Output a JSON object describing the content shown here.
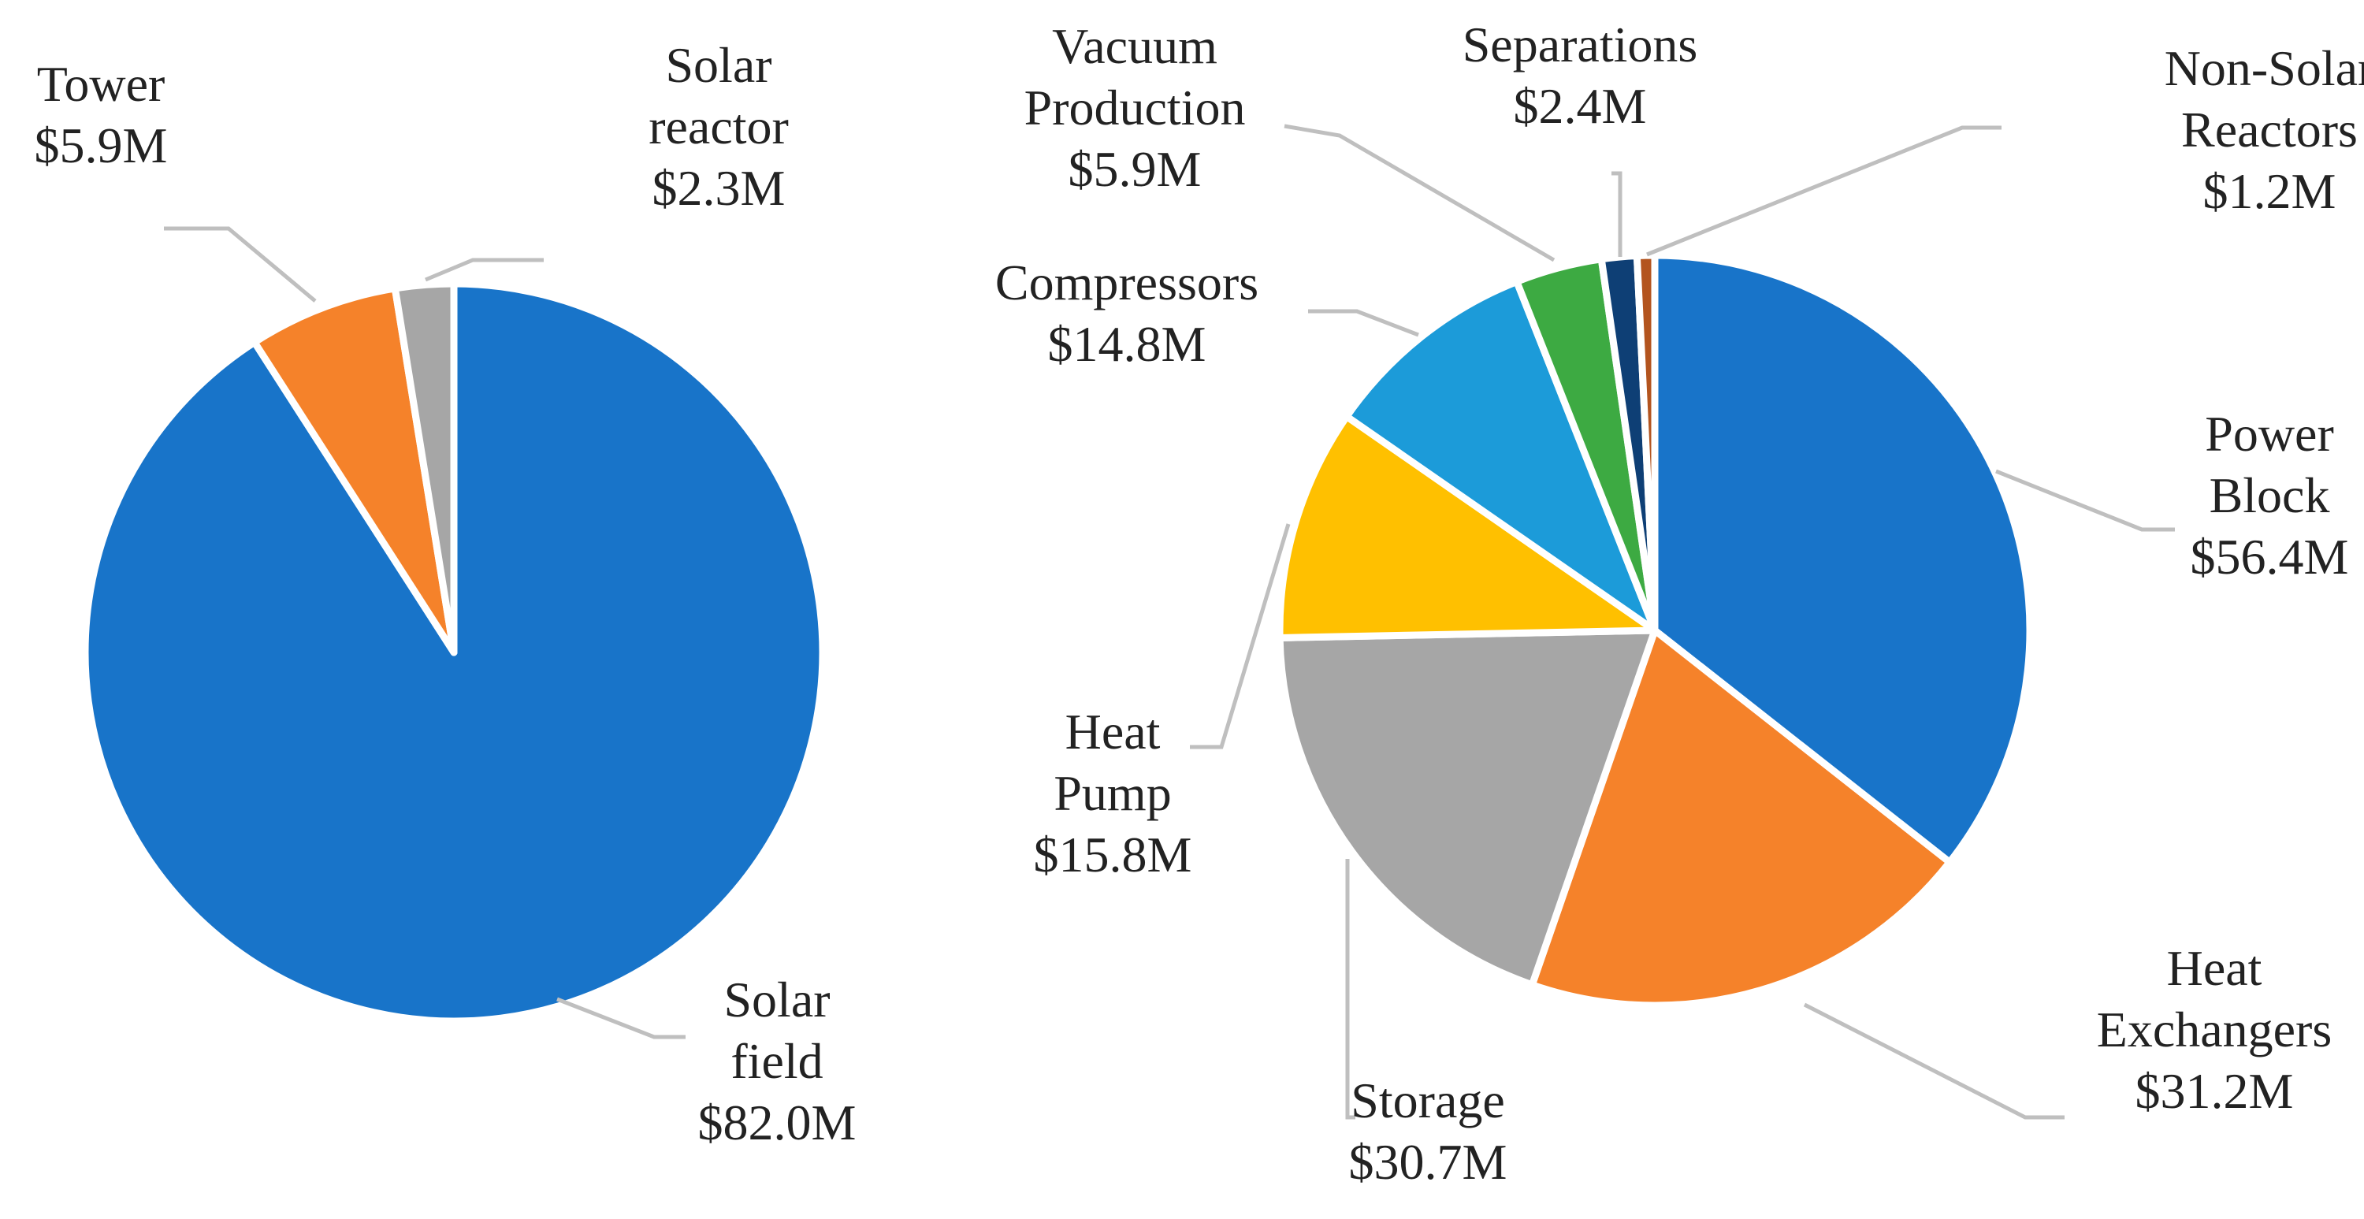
{
  "chart_data": [
    {
      "type": "pie",
      "title": "",
      "slices": [
        {
          "name": "Solar field",
          "label_lines": [
            "Solar",
            "field"
          ],
          "value_label": "$82.0M",
          "value": 82.0,
          "color": "#1874C9"
        },
        {
          "name": "Tower",
          "label_lines": [
            "Tower"
          ],
          "value_label": "$5.9M",
          "value": 5.9,
          "color": "#F5822A"
        },
        {
          "name": "Solar reactor",
          "label_lines": [
            "Solar",
            "reactor"
          ],
          "value_label": "$2.3M",
          "value": 2.3,
          "color": "#A6A6A6"
        }
      ]
    },
    {
      "type": "pie",
      "title": "",
      "slices": [
        {
          "name": "Power Block",
          "label_lines": [
            "Power",
            "Block"
          ],
          "value_label": "$56.4M",
          "value": 56.4,
          "color": "#1874C9"
        },
        {
          "name": "Heat Exchangers",
          "label_lines": [
            "Heat",
            "Exchangers"
          ],
          "value_label": "$31.2M",
          "value": 31.2,
          "color": "#F5822A"
        },
        {
          "name": "Storage",
          "label_lines": [
            "Storage"
          ],
          "value_label": "$30.7M",
          "value": 30.7,
          "color": "#A6A6A6"
        },
        {
          "name": "Heat Pump",
          "label_lines": [
            "Heat",
            "Pump"
          ],
          "value_label": "$15.8M",
          "value": 15.8,
          "color": "#FFC000"
        },
        {
          "name": "Compressors",
          "label_lines": [
            "Compressors"
          ],
          "value_label": "$14.8M",
          "value": 14.8,
          "color": "#1C9BD9"
        },
        {
          "name": "Vacuum Production",
          "label_lines": [
            "Vacuum",
            "Production"
          ],
          "value_label": "$5.9M",
          "value": 5.9,
          "color": "#3DAA42"
        },
        {
          "name": "Separations",
          "label_lines": [
            "Separations"
          ],
          "value_label": "$2.4M",
          "value": 2.4,
          "color": "#0E3F75"
        },
        {
          "name": "Non-Solar Reactors",
          "label_lines": [
            "Non-Solar",
            "Reactors"
          ],
          "value_label": "$1.2M",
          "value": 1.2,
          "color": "#B3541E"
        }
      ]
    }
  ]
}
